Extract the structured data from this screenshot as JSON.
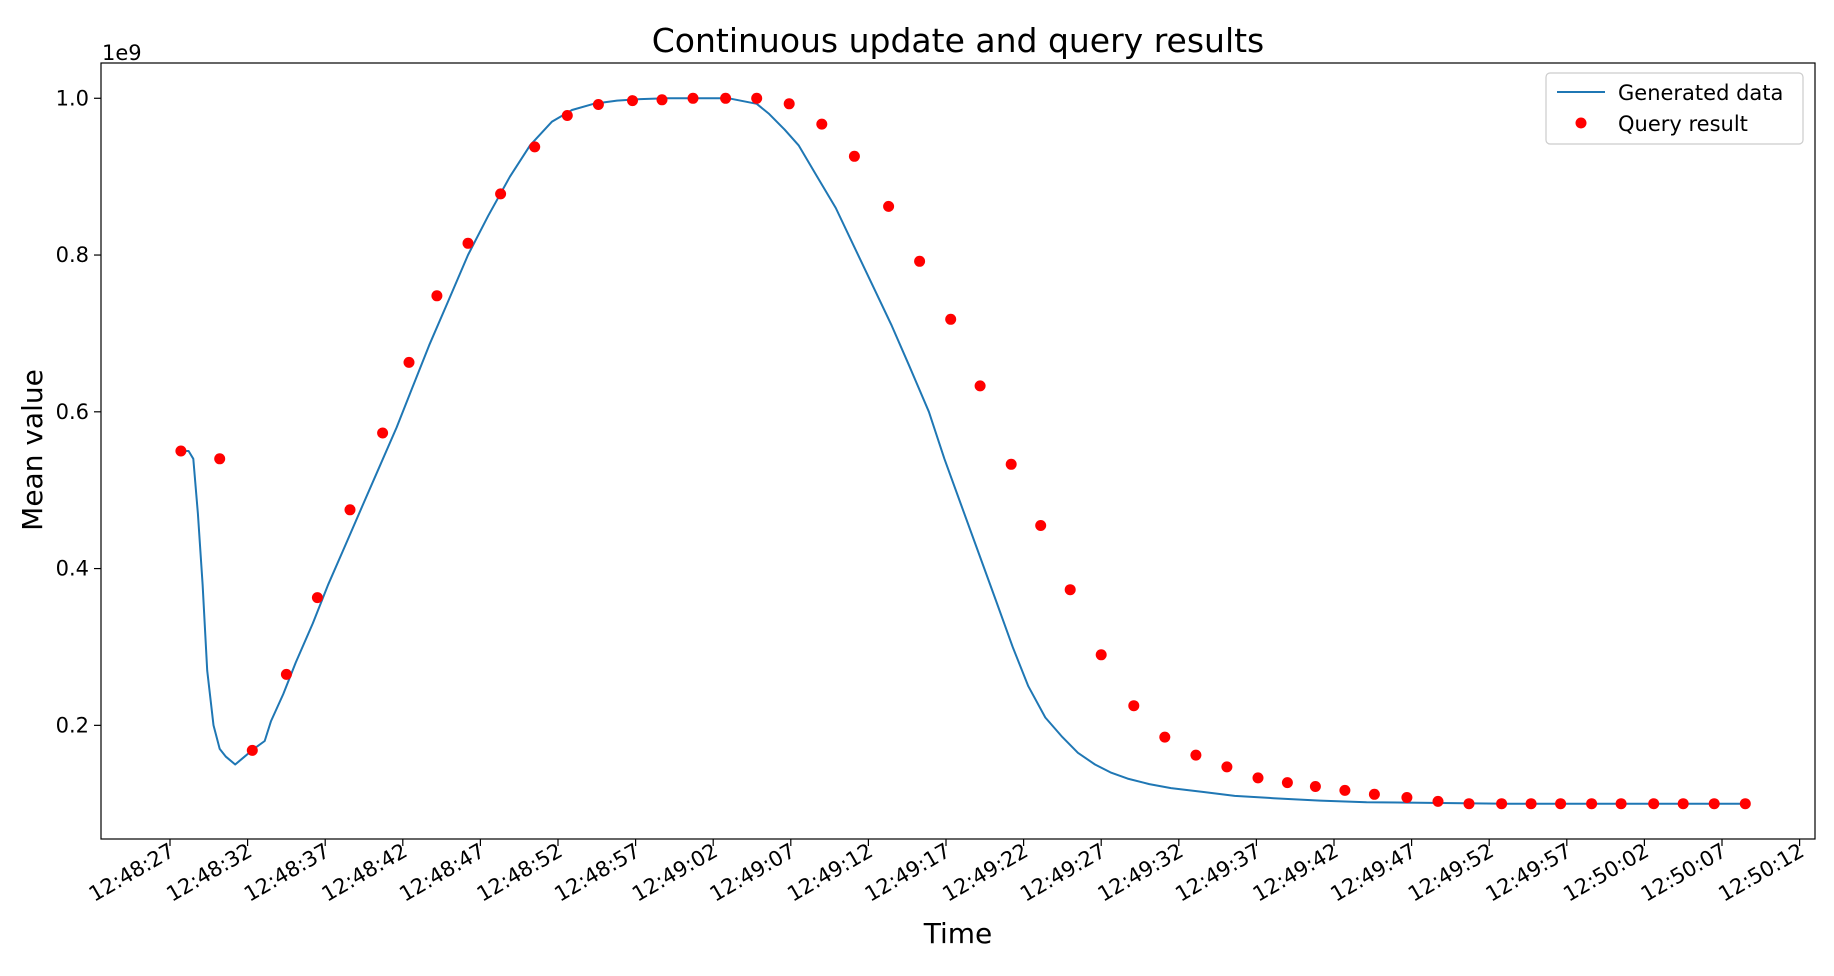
{
  "chart_data": {
    "type": "line",
    "title": "Continuous update and query results",
    "xlabel": "Time",
    "ylabel": "Mean value",
    "y_scale_label": "1e9",
    "x_range_seconds": [
      0,
      106
    ],
    "x_tick_labels": [
      "12:48:27",
      "12:48:32",
      "12:48:37",
      "12:48:42",
      "12:48:47",
      "12:48:52",
      "12:48:57",
      "12:49:02",
      "12:49:07",
      "12:49:12",
      "12:49:17",
      "12:49:22",
      "12:49:27",
      "12:49:32",
      "12:49:37",
      "12:49:42",
      "12:49:47",
      "12:49:52",
      "12:49:57",
      "12:50:02",
      "12:50:07",
      "12:50:12"
    ],
    "ylim": [
      0.055,
      1.045
    ],
    "y_ticks": [
      0.2,
      0.4,
      0.6,
      0.8,
      1.0
    ],
    "y_tick_labels": [
      "0.2",
      "0.4",
      "0.6",
      "0.8",
      "1.0"
    ],
    "legend": {
      "position": "top-right",
      "entries": [
        "Generated data",
        "Query result"
      ]
    },
    "colors": {
      "line": "#1f77b4",
      "points": "#ff0000"
    },
    "series": [
      {
        "name": "Generated data",
        "kind": "line",
        "x": [
          "12:48:27.6",
          "12:48:28.2",
          "12:48:28.5",
          "12:48:28.8",
          "12:48:29.1",
          "12:48:29.4",
          "12:48:29.8",
          "12:48:30.2",
          "12:48:30.6",
          "12:48:31.2",
          "12:48:31.8",
          "12:48:32.4",
          "12:48:33.1",
          "12:48:33.5",
          "12:48:34.3",
          "12:48:35.1",
          "12:48:36.2",
          "12:48:37.2",
          "12:48:38.3",
          "12:48:39.4",
          "12:48:40.5",
          "12:48:41.6",
          "12:48:42.6",
          "12:48:43.7",
          "12:48:44.9",
          "12:48:46.2",
          "12:48:47.5",
          "12:48:48.9",
          "12:48:50.2",
          "12:48:51.6",
          "12:48:52.9",
          "12:48:54.3",
          "12:48:55.8",
          "12:48:57.3",
          "12:48:59.0",
          "12:49:01.0",
          "12:49:03.0",
          "12:49:04.8",
          "12:49:05.6",
          "12:49:06.6",
          "12:49:07.5",
          "12:49:08.7",
          "12:49:09.9",
          "12:49:11.1",
          "12:49:12.3",
          "12:49:13.5",
          "12:49:14.6",
          "12:49:15.9",
          "12:49:16.9",
          "12:49:18.0",
          "12:49:19.1",
          "12:49:20.2",
          "12:49:21.3",
          "12:49:22.3",
          "12:49:23.4",
          "12:49:24.5",
          "12:49:25.5",
          "12:49:26.6",
          "12:49:27.6",
          "12:49:28.7",
          "12:49:30.1",
          "12:49:31.5",
          "12:49:33.6",
          "12:49:35.6",
          "12:49:38.1",
          "12:49:41.1",
          "12:49:44.1",
          "12:49:48.2",
          "12:49:53.2",
          "12:49:58.3",
          "12:50:03.3",
          "12:50:08.3"
        ],
        "values": [
          0.55,
          0.55,
          0.54,
          0.47,
          0.38,
          0.27,
          0.2,
          0.17,
          0.16,
          0.15,
          0.16,
          0.17,
          0.18,
          0.205,
          0.24,
          0.28,
          0.33,
          0.38,
          0.43,
          0.48,
          0.53,
          0.58,
          0.63,
          0.685,
          0.74,
          0.8,
          0.85,
          0.9,
          0.94,
          0.97,
          0.985,
          0.993,
          0.997,
          0.999,
          1.0,
          1.0,
          1.0,
          0.993,
          0.98,
          0.96,
          0.94,
          0.9,
          0.86,
          0.81,
          0.76,
          0.71,
          0.66,
          0.6,
          0.54,
          0.48,
          0.42,
          0.36,
          0.3,
          0.25,
          0.21,
          0.185,
          0.165,
          0.15,
          0.14,
          0.132,
          0.125,
          0.12,
          0.115,
          0.11,
          0.107,
          0.104,
          0.102,
          0.101,
          0.1,
          0.1,
          0.1,
          0.1
        ]
      },
      {
        "name": "Query result",
        "kind": "scatter",
        "x": [
          "12:48:27.7",
          "12:48:30.2",
          "12:48:32.3",
          "12:48:34.5",
          "12:48:36.5",
          "12:48:38.6",
          "12:48:40.7",
          "12:48:42.4",
          "12:48:44.2",
          "12:48:46.2",
          "12:48:48.3",
          "12:48:50.5",
          "12:48:52.6",
          "12:48:54.6",
          "12:48:56.8",
          "12:48:58.7",
          "12:49:00.7",
          "12:49:02.8",
          "12:49:04.8",
          "12:49:06.9",
          "12:49:09.0",
          "12:49:11.1",
          "12:49:13.3",
          "12:49:15.3",
          "12:49:17.3",
          "12:49:19.2",
          "12:49:21.2",
          "12:49:23.1",
          "12:49:25.0",
          "12:49:27.0",
          "12:49:29.1",
          "12:49:31.1",
          "12:49:33.1",
          "12:49:35.1",
          "12:49:37.1",
          "12:49:39.0",
          "12:49:40.8",
          "12:49:42.7",
          "12:49:44.6",
          "12:49:46.7",
          "12:49:48.7",
          "12:49:50.7",
          "12:49:52.8",
          "12:49:54.7",
          "12:49:56.6",
          "12:49:58.6",
          "12:50:00.5",
          "12:50:02.6",
          "12:50:04.5",
          "12:50:06.5",
          "12:50:08.5"
        ],
        "values": [
          0.55,
          0.54,
          0.168,
          0.265,
          0.363,
          0.475,
          0.573,
          0.663,
          0.748,
          0.815,
          0.878,
          0.938,
          0.978,
          0.992,
          0.997,
          0.998,
          1.0,
          1.0,
          1.0,
          0.993,
          0.967,
          0.926,
          0.862,
          0.792,
          0.718,
          0.633,
          0.533,
          0.455,
          0.373,
          0.29,
          0.225,
          0.185,
          0.162,
          0.147,
          0.133,
          0.127,
          0.122,
          0.117,
          0.112,
          0.108,
          0.103,
          0.1,
          0.1,
          0.1,
          0.1,
          0.1,
          0.1,
          0.1,
          0.1,
          0.1,
          0.1
        ]
      }
    ]
  }
}
